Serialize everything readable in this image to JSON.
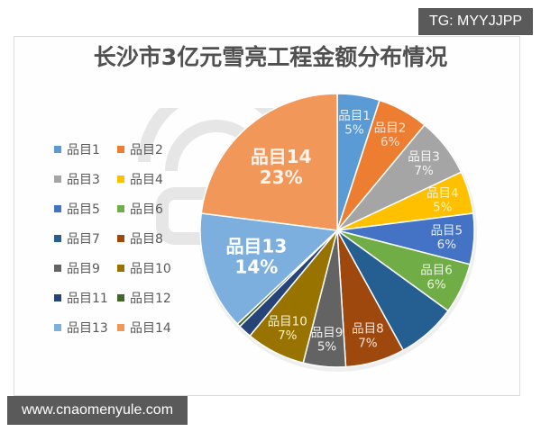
{
  "badges": {
    "top_right": "TG: MYYJJPP",
    "bottom_left": "www.cnaomenyule.com"
  },
  "chart_data": {
    "type": "pie",
    "title": "长沙市3亿元雪亮工程金额分布情况",
    "legend_position": "left",
    "start_angle": "12 o'clock, clockwise",
    "categories": [
      "品目1",
      "品目2",
      "品目3",
      "品目4",
      "品目5",
      "品目6",
      "品目7",
      "品目8",
      "品目9",
      "品目10",
      "品目11",
      "品目12",
      "品目13",
      "品目14"
    ],
    "values": [
      5,
      6,
      7,
      5,
      6,
      6,
      7,
      7,
      5,
      7,
      1.6,
      0.4,
      14,
      23
    ],
    "data_labels": [
      "品目1\n5%",
      "品目2\n6%",
      "品目3\n7%",
      "品目4\n5%",
      "品目5\n6%",
      "品目6\n6%",
      "",
      "品目8\n7%",
      "品目9\n5%",
      "品目10\n7%",
      "",
      "",
      "品目13\n14%",
      "品目14\n23%"
    ],
    "colors": [
      "#5b9bd5",
      "#ed7d31",
      "#a5a5a5",
      "#ffc000",
      "#4472c4",
      "#70ad47",
      "#255e91",
      "#9e480e",
      "#636363",
      "#997300",
      "#264478",
      "#43682b",
      "#7cafdd",
      "#f1975a"
    ],
    "label_colors": [
      "#e8f1fb",
      "#fbe3d0",
      "#f5f5f5",
      "#fff2c4",
      "#e6edf9",
      "#eaf5e1",
      "#ffffff",
      "#fbe3d0",
      "#f0f0f0",
      "#fff2c4",
      "#ffffff",
      "#ffffff",
      "#ffffff",
      "#fff3ea"
    ]
  },
  "legend": {
    "items": [
      {
        "label": "品目1",
        "color": "#5b9bd5"
      },
      {
        "label": "品目2",
        "color": "#ed7d31"
      },
      {
        "label": "品目3",
        "color": "#a5a5a5"
      },
      {
        "label": "品目4",
        "color": "#ffc000"
      },
      {
        "label": "品目5",
        "color": "#4472c4"
      },
      {
        "label": "品目6",
        "color": "#70ad47"
      },
      {
        "label": "品目7",
        "color": "#255e91"
      },
      {
        "label": "品目8",
        "color": "#9e480e"
      },
      {
        "label": "品目9",
        "color": "#636363"
      },
      {
        "label": "品目10",
        "color": "#997300"
      },
      {
        "label": "品目11",
        "color": "#264478"
      },
      {
        "label": "品目12",
        "color": "#43682b"
      },
      {
        "label": "品目13",
        "color": "#7cafdd"
      },
      {
        "label": "品目14",
        "color": "#f1975a"
      }
    ]
  }
}
